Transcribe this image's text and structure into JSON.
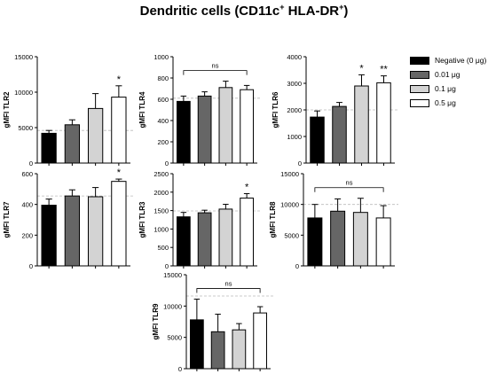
{
  "title_main": "Dendritic cells (CD11c",
  "title_sup1": "+",
  "title_mid": " HLA-DR",
  "title_sup2": "+",
  "title_end": ")",
  "legend": {
    "items": [
      {
        "label": "Negative (0 μg)",
        "color": "#000000"
      },
      {
        "label": "0.01 μg",
        "color": "#666666"
      },
      {
        "label": "0.1 μg",
        "color": "#d3d3d3"
      },
      {
        "label": "0.5 μg",
        "color": "#ffffff"
      }
    ]
  },
  "chart_data": [
    {
      "type": "bar",
      "ylabel": "gMFI TLR2",
      "ylim": [
        0,
        15000
      ],
      "yticks": [
        "0",
        "5000",
        "10000",
        "15000"
      ],
      "categories": [
        "Negative (0 μg)",
        "0.01 μg",
        "0.1 μg",
        "0.5 μg"
      ],
      "values": [
        4200,
        5400,
        7700,
        9300
      ],
      "errors": [
        400,
        700,
        2100,
        1600
      ],
      "annotations": [
        "",
        "",
        "",
        "*"
      ],
      "bracket": null,
      "dashed_line": 4600
    },
    {
      "type": "bar",
      "ylabel": "gMFI TLR4",
      "ylim": [
        0,
        1000
      ],
      "yticks": [
        "0",
        "200",
        "400",
        "600",
        "800",
        "1000"
      ],
      "categories": [
        "Negative (0 μg)",
        "0.01 μg",
        "0.1 μg",
        "0.5 μg"
      ],
      "values": [
        580,
        630,
        710,
        690
      ],
      "errors": [
        50,
        40,
        60,
        40
      ],
      "annotations": [
        "",
        "",
        "",
        ""
      ],
      "bracket": "ns",
      "dashed_line": 610
    },
    {
      "type": "bar",
      "ylabel": "gMFI TLR6",
      "ylim": [
        0,
        4000
      ],
      "yticks": [
        "0",
        "1000",
        "2000",
        "3000",
        "4000"
      ],
      "categories": [
        "Negative (0 μg)",
        "0.01 μg",
        "0.1 μg",
        "0.5 μg"
      ],
      "values": [
        1730,
        2130,
        2900,
        3020
      ],
      "errors": [
        230,
        150,
        420,
        260
      ],
      "annotations": [
        "",
        "",
        "*",
        "**"
      ],
      "bracket": null,
      "dashed_line": 2000
    },
    {
      "type": "bar",
      "ylabel": "gMFI TLR7",
      "ylim": [
        0,
        600
      ],
      "yticks": [
        "0",
        "200",
        "400",
        "600"
      ],
      "categories": [
        "Negative (0 μg)",
        "0.01 μg",
        "0.1 μg",
        "0.5 μg"
      ],
      "values": [
        395,
        455,
        450,
        550
      ],
      "errors": [
        40,
        40,
        60,
        15
      ],
      "annotations": [
        "",
        "",
        "",
        "*"
      ],
      "bracket": null,
      "dashed_line": 455
    },
    {
      "type": "bar",
      "ylabel": "gMFI TLR3",
      "ylim": [
        0,
        2500
      ],
      "yticks": [
        "0",
        "500",
        "1000",
        "1500",
        "2000",
        "2500"
      ],
      "categories": [
        "Negative (0 μg)",
        "0.01 μg",
        "0.1 μg",
        "0.5 μg"
      ],
      "values": [
        1330,
        1440,
        1540,
        1840
      ],
      "errors": [
        120,
        70,
        130,
        120
      ],
      "annotations": [
        "",
        "",
        "",
        "*"
      ],
      "bracket": null,
      "dashed_line": 1490
    },
    {
      "type": "bar",
      "ylabel": "gMFI TLR8",
      "ylim": [
        0,
        15000
      ],
      "yticks": [
        "0",
        "5000",
        "10000",
        "15000"
      ],
      "categories": [
        "Negative (0 μg)",
        "0.01 μg",
        "0.1 μg",
        "0.5 μg"
      ],
      "values": [
        7800,
        8900,
        8700,
        7800
      ],
      "errors": [
        2200,
        2000,
        2300,
        2000
      ],
      "annotations": [
        "",
        "",
        "",
        ""
      ],
      "bracket": "ns",
      "dashed_line": 10000
    },
    {
      "type": "bar",
      "ylabel": "gMFI TLR9",
      "ylim": [
        0,
        15000
      ],
      "yticks": [
        "0",
        "5000",
        "10000",
        "15000"
      ],
      "categories": [
        "Negative (0 μg)",
        "0.01 μg",
        "0.1 μg",
        "0.5 μg"
      ],
      "values": [
        7800,
        5900,
        6200,
        8900
      ],
      "errors": [
        3300,
        2800,
        1000,
        1000
      ],
      "annotations": [
        "",
        "",
        "",
        ""
      ],
      "bracket": "ns",
      "dashed_line": 11600
    }
  ]
}
